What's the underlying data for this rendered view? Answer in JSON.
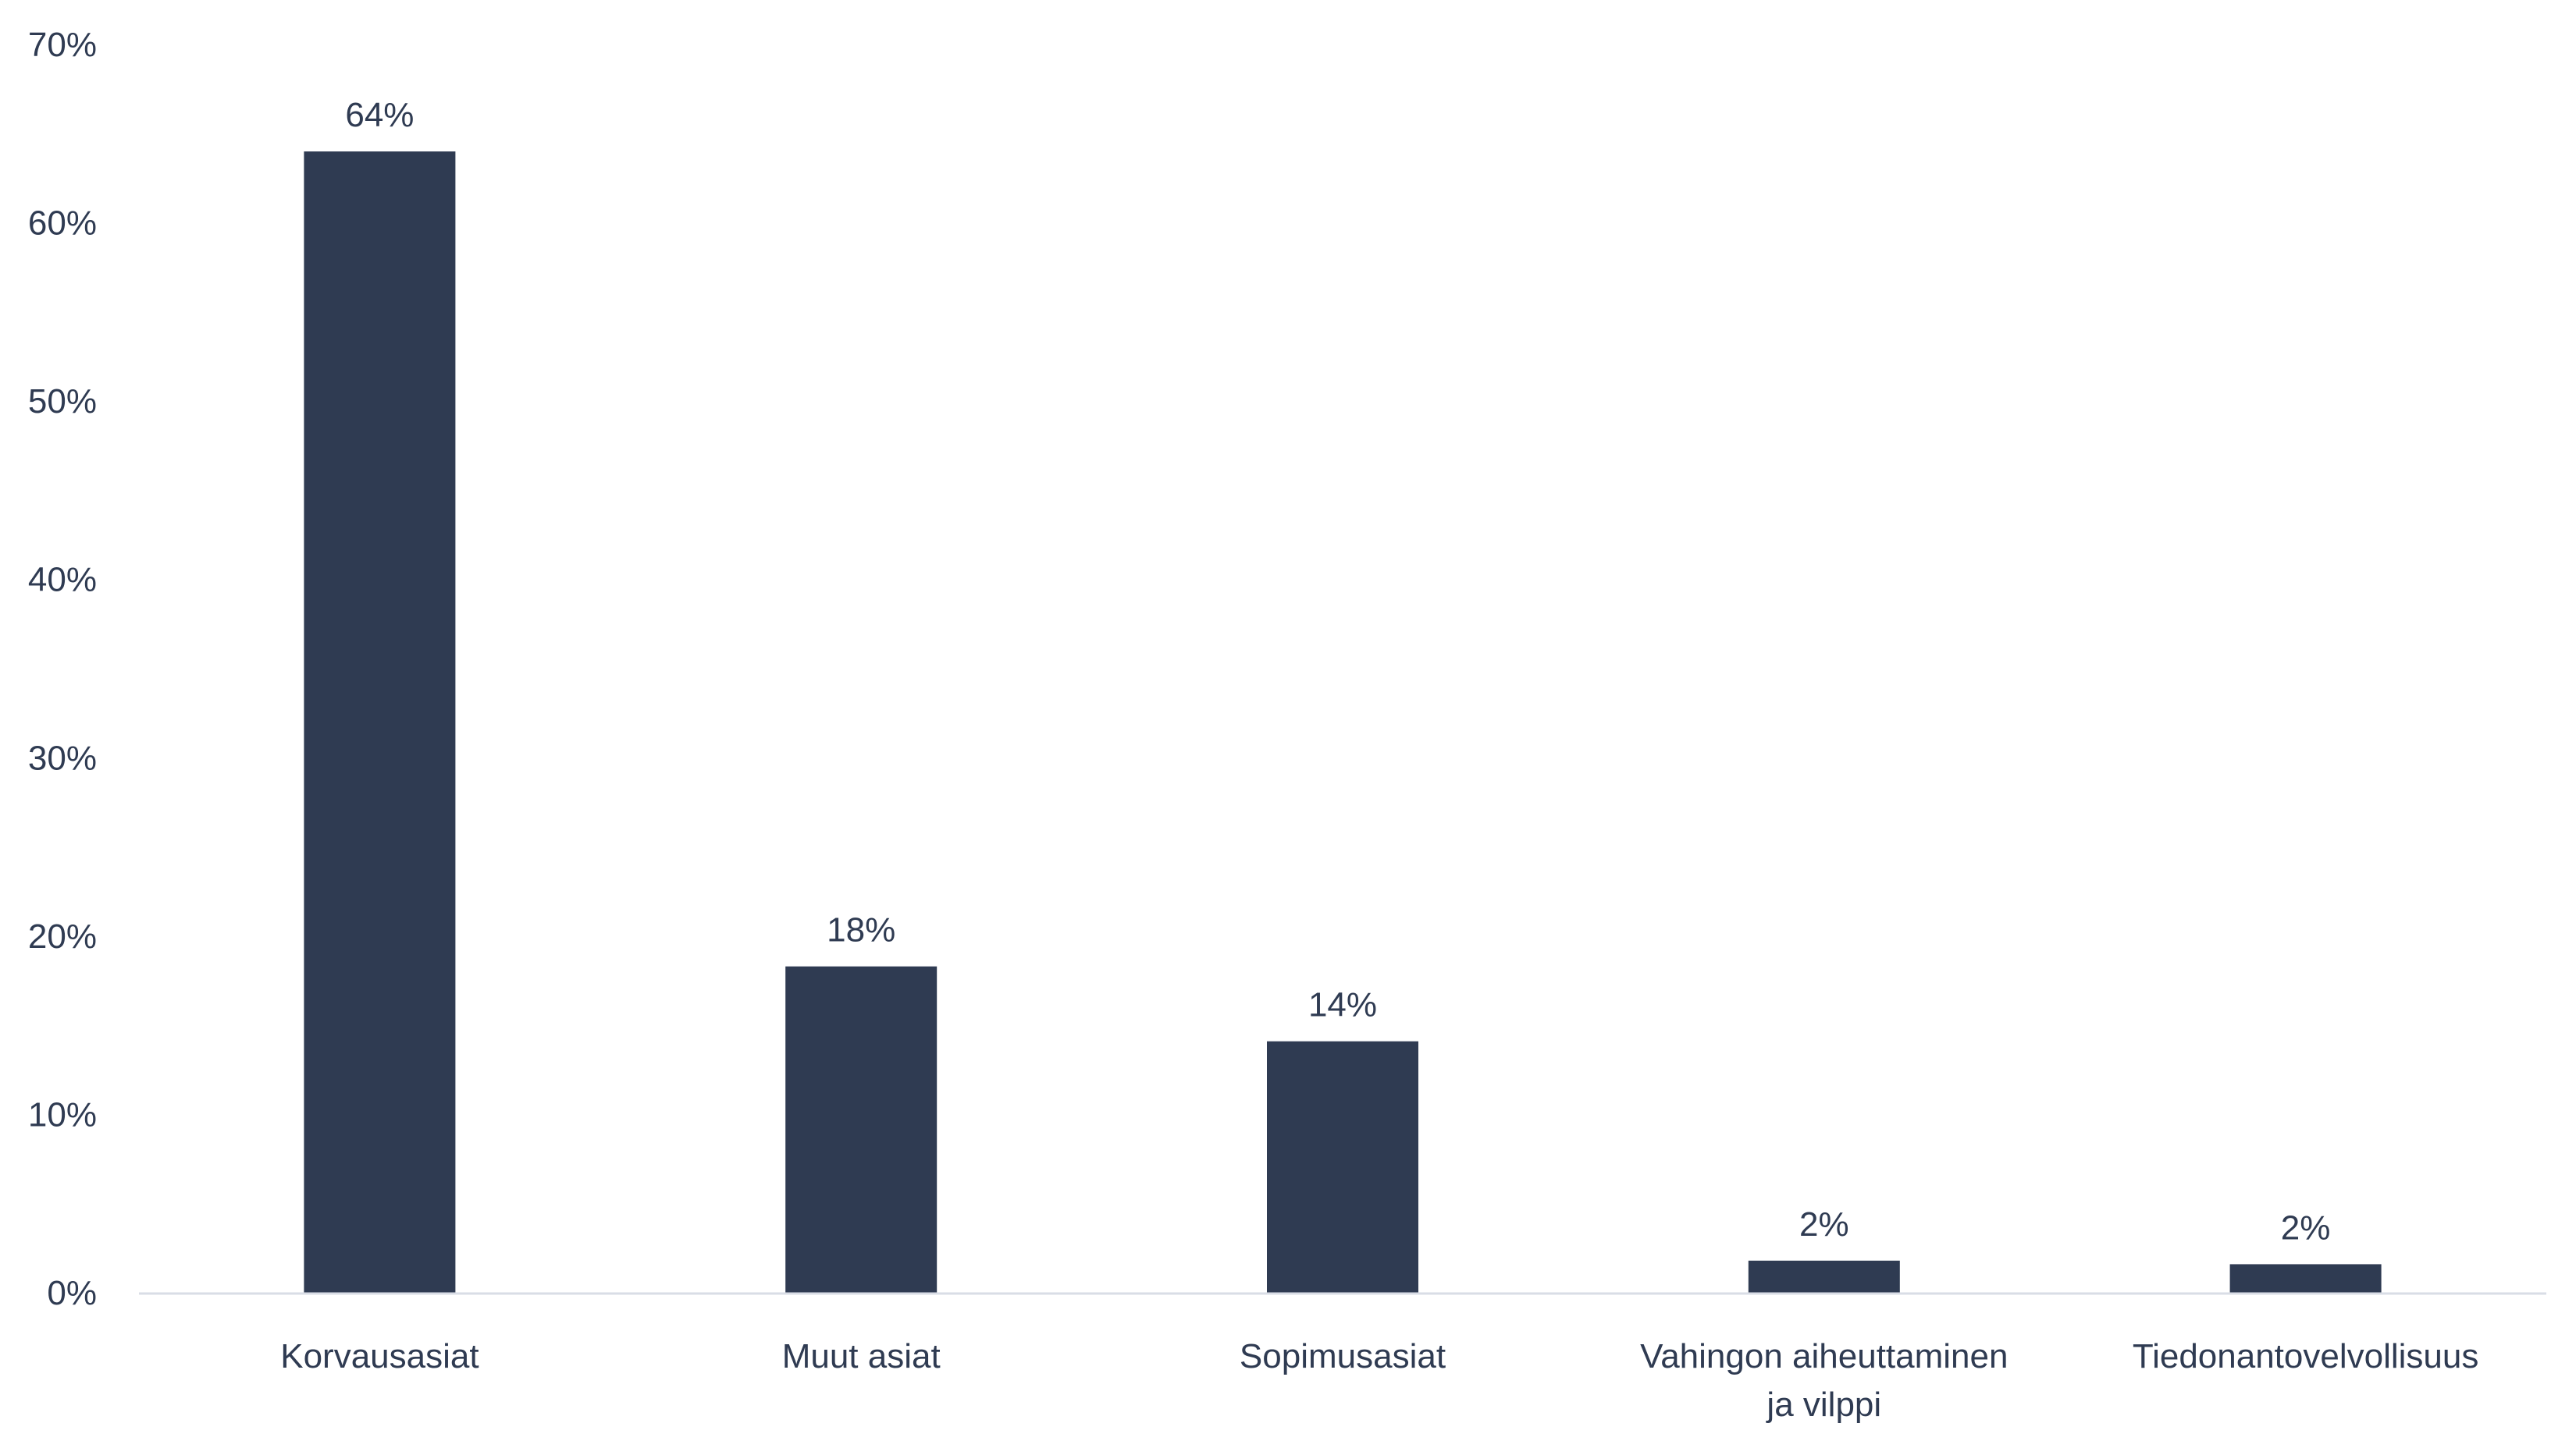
{
  "chart_data": {
    "type": "bar",
    "title": "",
    "xlabel": "",
    "ylabel": "",
    "categories": [
      [
        "Korvausasiat"
      ],
      [
        "Muut asiat"
      ],
      [
        "Sopimusasiat"
      ],
      [
        "Vahingon aiheuttaminen",
        "ja vilppi"
      ],
      [
        "Tiedonantovelvollisuus"
      ]
    ],
    "values": [
      64,
      18.3,
      14.1,
      1.8,
      1.6
    ],
    "data_labels": [
      "64%",
      "18%",
      "14%",
      "2%",
      "2%"
    ],
    "ylim": [
      0,
      70
    ],
    "yticks": [
      "0%",
      "10%",
      "20%",
      "30%",
      "40%",
      "50%",
      "60%",
      "70%"
    ],
    "grid": false,
    "bar_color": "#2f3b52",
    "axis_color": "#d9dde6"
  }
}
